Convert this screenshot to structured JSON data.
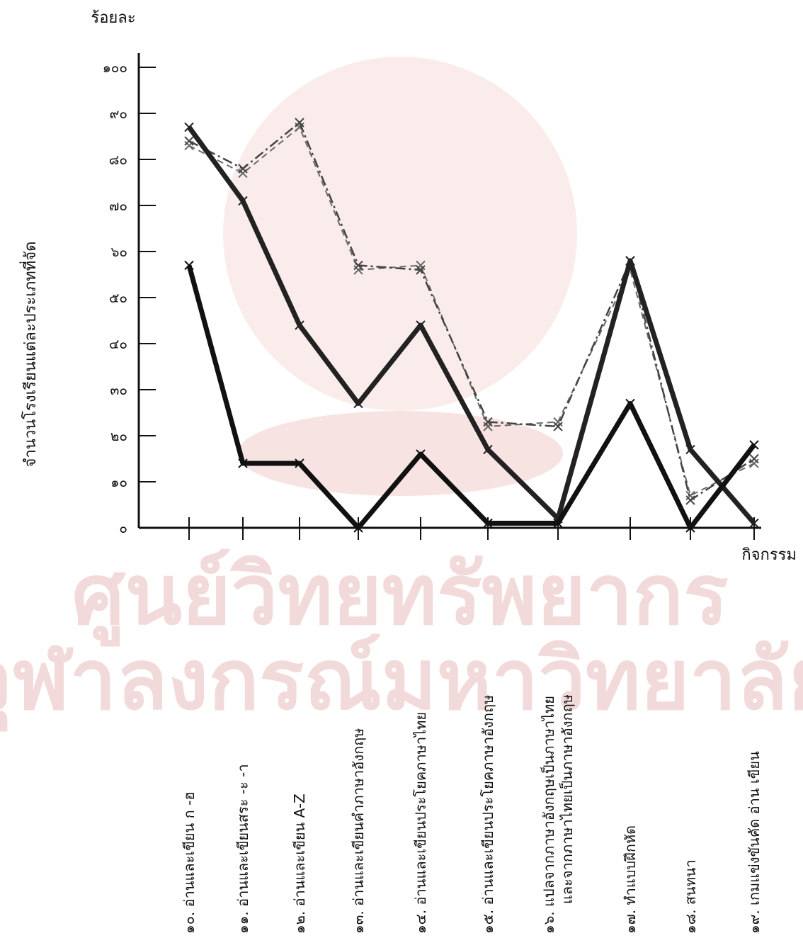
{
  "chart_data": {
    "type": "line",
    "title": "",
    "ylabel": "ร้อยละ",
    "xlabel": "กิจกรรม",
    "side_label": "จำนวนโรงเรียนแต่ละประเภทที่จัด",
    "ylim": [
      0,
      100
    ],
    "yticks": [
      "๐",
      "๑๐",
      "๒๐",
      "๓๐",
      "๔๐",
      "๕๐",
      "๖๐",
      "๗๐",
      "๘๐",
      "๙๐",
      "๑๐๐"
    ],
    "grid": false,
    "categories": [
      {
        "num": "๑๐.",
        "text": "อ่านและเขียน ก -ฮ"
      },
      {
        "num": "๑๑.",
        "text": "อ่านและเขียนสระ -ะ -า"
      },
      {
        "num": "๑๒.",
        "text": "อ่านและเขียน A-Z"
      },
      {
        "num": "๑๓.",
        "text": "อ่านและเขียนคำภาษาอังกฤษ"
      },
      {
        "num": "๑๔.",
        "text": "อ่านและเขียนประโยคภาษาไทย"
      },
      {
        "num": "๑๕.",
        "text": "อ่านและเขียนประโยคภาษาอังกฤษ"
      },
      {
        "num": "๑๖.",
        "text": "แปลจากภาษาอังกฤษเป็นภาษาไทย",
        "text2": "และจากภาษาไทยเป็นภาษาอังกฤษ"
      },
      {
        "num": "๑๗.",
        "text": "ทำแบบฝึกหัด"
      },
      {
        "num": "๑๘.",
        "text": "สนทนา"
      },
      {
        "num": "๑๙.",
        "text": "เกมแข่งขันคัด อ่าน เขียน"
      }
    ],
    "series": [
      {
        "values": [
          57,
          14,
          14,
          0,
          16,
          1,
          1,
          27,
          0,
          18
        ],
        "style": "bold",
        "color": "#111111"
      },
      {
        "values": [
          87,
          71,
          44,
          27,
          44,
          17,
          2,
          58,
          17,
          1
        ],
        "style": "bold",
        "color": "#222222"
      },
      {
        "values": [
          84,
          78,
          88,
          57,
          56,
          23,
          22,
          58,
          6,
          15
        ],
        "style": "dashdot",
        "color": "#444444"
      },
      {
        "values": [
          83,
          77,
          87,
          56,
          57,
          22,
          23,
          56,
          7,
          14
        ],
        "style": "dashed",
        "color": "#6a6a6a"
      }
    ]
  },
  "watermark": {
    "line1": "ศูนย์วิทยทรัพยากร",
    "line2": "จุฬาลงกรณ์มหาวิทยาลัย"
  }
}
